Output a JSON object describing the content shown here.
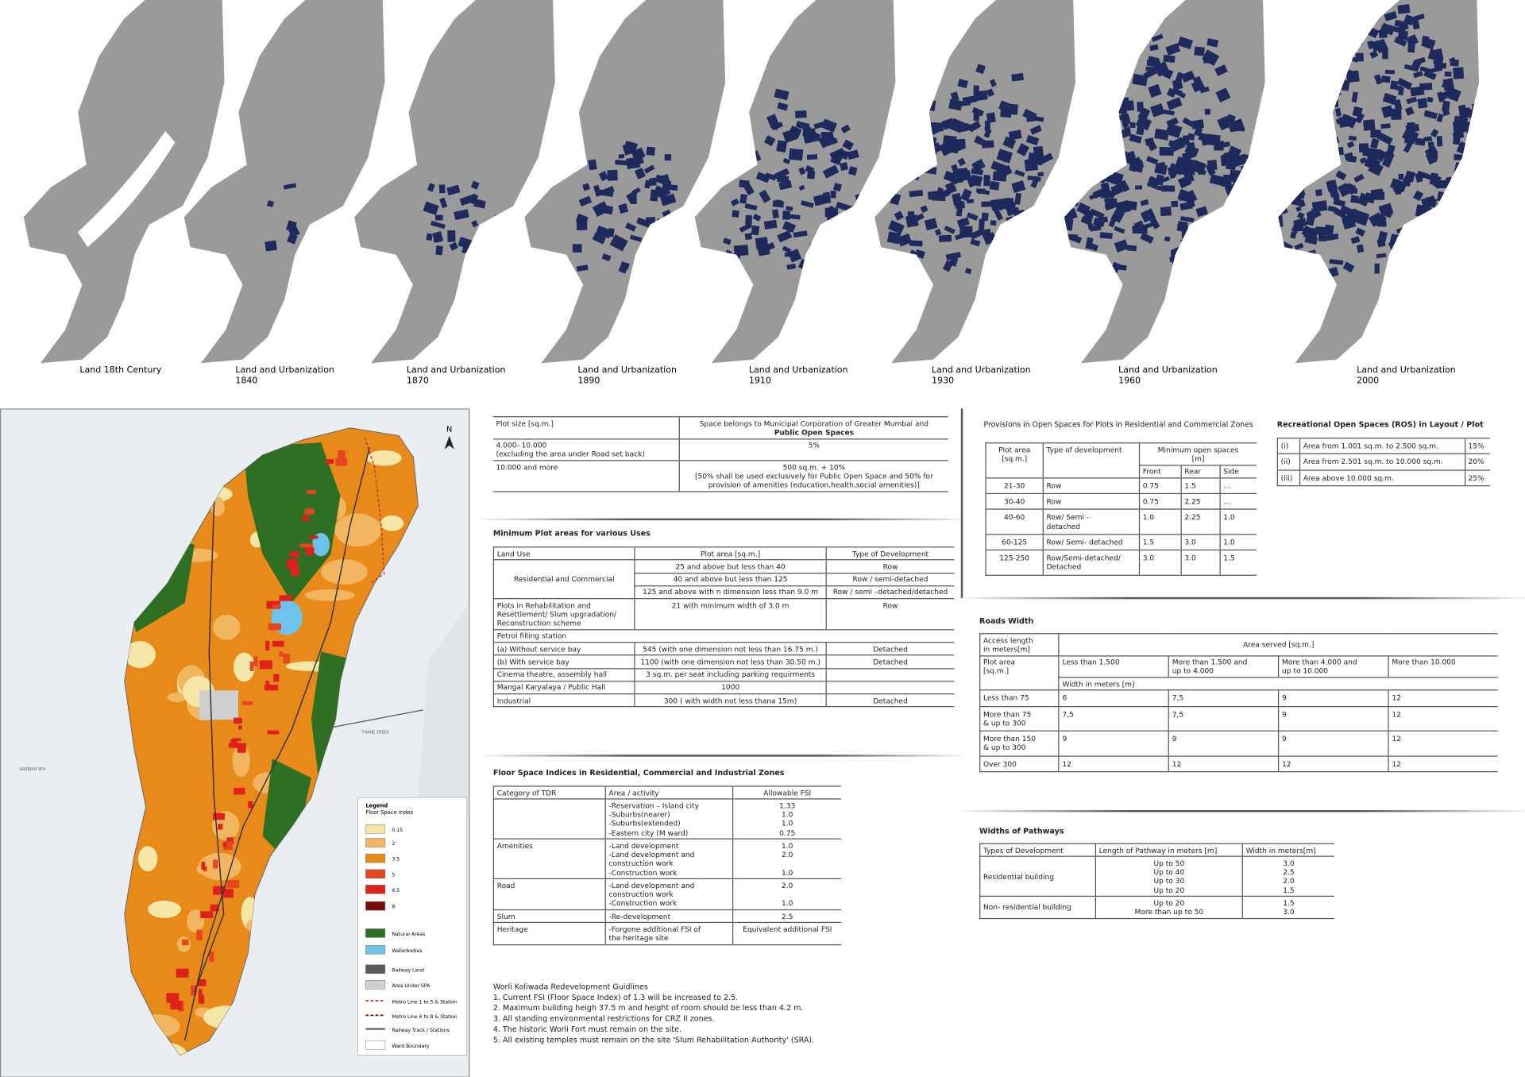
{
  "timeline": {
    "maps": [
      {
        "label": "Land 18th Century"
      },
      {
        "label": "Land and Urbanization",
        "year": "1840"
      },
      {
        "label": "Land and Urbanization",
        "year": "1870"
      },
      {
        "label": "Land and Urbanization",
        "year": "1890"
      },
      {
        "label": "Land and Urbanization",
        "year": "1910"
      },
      {
        "label": "Land and Urbanization",
        "year": "1930"
      },
      {
        "label": "Land and Urbanization",
        "year": "1960"
      },
      {
        "label": "Land and Urbanization",
        "year": "2000"
      }
    ]
  },
  "zoning_map": {
    "north": "N",
    "sea": "ARABIAN SEA",
    "creek": "THANE CREEK",
    "legend": {
      "title": "Legend",
      "subtitle": "Floor Space Index",
      "items": [
        {
          "label": "0.15",
          "color": "#f6e7a9"
        },
        {
          "label": "2",
          "color": "#f2b560"
        },
        {
          "label": "3.5",
          "color": "#e88a1a"
        },
        {
          "label": "5",
          "color": "#e5451f"
        },
        {
          "label": "6.5",
          "color": "#e0201b"
        },
        {
          "label": "8",
          "color": "#7a0a0a"
        },
        {
          "label": "Natural Areas",
          "color": "#2e6f23"
        },
        {
          "label": "Waterbodies",
          "color": "#6ec3ec"
        },
        {
          "label": "Railway Land",
          "color": "#5a5a5a"
        },
        {
          "label": "Area Under SPA",
          "color": "#cfcfcf"
        },
        {
          "label": "Metro Line 1 to 5 & Station",
          "color": "#c0392b"
        },
        {
          "label": "Metro Line 6 to 8 & Station",
          "color": "#8b0000"
        },
        {
          "label": "Railway Track / Stations",
          "color": "#333333"
        },
        {
          "label": "Ward Boundary",
          "color": "#ffffff"
        }
      ]
    }
  },
  "plot_size_table": {
    "header": {
      "plot": "Plot size [sq.m.]",
      "space": "Space belongs to Municipal Corporation of Greater Mumbai and",
      "space_bold": "Public Open Spaces"
    },
    "rows": [
      [
        "4.000- 10.000\n(excluding the area under Road set back)",
        "5%"
      ],
      [
        "10.000 and more",
        "500 sq.m. + 10%\n[50% shall be used exclusively for Public Open Space and 50% for provision of amenities (education,health,social amenities)]"
      ]
    ]
  },
  "minimum_plot_areas": {
    "title": "Minimum Plot areas for various Uses",
    "header": [
      "Land Use",
      "Plot area [sq.m.]",
      "Type of Development"
    ],
    "rows": [
      {
        "use": "Residential and Commercial",
        "items": [
          [
            "25 and above but less than 40",
            "Row"
          ],
          [
            "40 and above but less than 125",
            "Row / semi-detached"
          ],
          [
            "125 and above with n dimension less than 9.0 m",
            "Row / semi –detached/detached"
          ]
        ]
      },
      {
        "use": "Plots in Rehabilitation and Resettlement/ Slum upgradation/ Reconstruction scheme",
        "items": [
          [
            "21 with minimum width of 3.0 m",
            "Row"
          ]
        ]
      },
      {
        "use": "Petrol filling station",
        "items": []
      },
      {
        "use": "(a) Without service bay",
        "items": [
          [
            "545 (with one dimension not less than 16.75 m.)",
            "Detached"
          ]
        ]
      },
      {
        "use": "(b) With service bay",
        "items": [
          [
            "1100 (with one dimension not less than 30.50 m.)",
            "Detached"
          ]
        ]
      },
      {
        "use": "Cinema theatre, assembly hall",
        "items": [
          [
            "3 sq.m. per seat including parking requirments"
          ]
        ]
      },
      {
        "use": "Mangal Karyalaya / Public Hall",
        "items": [
          [
            "1000"
          ]
        ]
      },
      {
        "use": "Industrial",
        "items": [
          [
            "300 ( with width not less thana 15m)",
            "Detached"
          ]
        ]
      }
    ]
  },
  "floor_space_indices": {
    "title": "Floor Space Indices in Residential, Commercial and Industrial Zones",
    "header": [
      "Category of TDR",
      "Area / activity",
      "Allowable FSI"
    ],
    "rows": [
      {
        "activity": "-Reservation – Island city\n-Suburbs(nearer)\n-Suburbs(extended)\n-Eastern city (M ward)",
        "fsi": "1.33\n1.0\n1.0\n0.75"
      },
      {
        "category": "Amenities",
        "activity": "-Land development\n-Land development and\nconstruction work\n-Construction work",
        "fsi": "1.0\n2.0\n\n1.0"
      },
      {
        "category": "Road",
        "activity": "-Land development and\nconstruction work\n-Construction work",
        "fsi": "2.0\n\n1.0"
      },
      {
        "category": "Slum",
        "activity": "-Re-development",
        "fsi": "2.5"
      },
      {
        "category": "Heritage",
        "activity": "-Forgone additional FSI of\nthe heritage site",
        "fsi": "Equivalent additional FSI"
      }
    ]
  },
  "worli_guidelines": {
    "title": "Worli Koliwada Redevelopment Guidlines",
    "items": [
      "1. Current FSI (Floor Space Index) of 1.3 will be increased to 2.5.",
      "2. Maximum building heigh 37.5 m and height of room should be less than 4.2 m.",
      "3. All standing environmental restrictions for CRZ II zones.",
      "4. The historic Worli Fort must remain on the site.",
      "5. All existing temples must remain on the site 'Slum Rehabilitation Authority' (SRA)."
    ]
  },
  "open_spaces": {
    "title": "Provisions in Open Spaces for Plots in Residential and Commercial Zones",
    "header": {
      "plot_area": "Plot area\n[sq.m.]",
      "type": "Type of development",
      "minimum": "Minimum open spaces\n[m]",
      "sub": [
        "Front",
        "Rear",
        "Side"
      ]
    },
    "rows": [
      [
        "21-30",
        "Row",
        "0.75",
        "1.5",
        "..."
      ],
      [
        "30-40",
        "Row",
        "0.75",
        "2.25",
        "..."
      ],
      [
        "40-60",
        "Row/ Semi -\ndetached",
        "1.0",
        "2.25",
        "1.0"
      ],
      [
        "60-125",
        "Row/ Semi- detached",
        "1.5",
        "3.0",
        "1.0"
      ],
      [
        "125-250",
        "Row/Semi-detached/\nDetached",
        "3.0",
        "3.0",
        "1.5"
      ]
    ]
  },
  "ros": {
    "title": "Recreational Open Spaces (ROS) in Layout / Plot",
    "rows": [
      [
        "(i)",
        "Area from 1.001 sq.m. to 2.500 sq.m.",
        "15%"
      ],
      [
        "(ii)",
        "Area from 2.501 sq.m. to 10.000 sq.m.",
        "20%"
      ],
      [
        "(iii)",
        "Area above 10.000 sq.m.",
        "25%"
      ]
    ]
  },
  "roads_width": {
    "title": "Roads Width",
    "access_length": "Access length\nin meters[m]",
    "area_served": "Area served [sq.m.]",
    "plot_area": "Plot area\n[sq.m.]",
    "width": "Width in meters [m]",
    "columns": [
      "Less than 1.500",
      "More than 1.500 and\nup to 4.000",
      "More than 4.000 and\nup to 10.000",
      "More than 10.000"
    ],
    "rows": [
      [
        "Less than 75",
        "6",
        "7,5",
        "9",
        "12"
      ],
      [
        "More than 75\n& up to 300",
        "7,5",
        "7,5",
        "9",
        "12"
      ],
      [
        "More than 150\n& up to 300",
        "9",
        "9",
        "9",
        "12"
      ],
      [
        "Over 300",
        "12",
        "12",
        "12",
        "12"
      ]
    ]
  },
  "pathways": {
    "title": "Widths of Pathways",
    "header": [
      "Types of Development",
      "Length of Pathway in meters [m]",
      "Width in meters[m]"
    ],
    "rows": [
      {
        "type": "Residential building",
        "lengths": "Up to 50\nUp to 40\nUp to 30\nUp to 20",
        "widths": "3.0\n2.5\n2.0\n1.5"
      },
      {
        "type": "Non- residential building",
        "lengths": "Up to 20\nMore than up to 50",
        "widths": "1.5\n3.0"
      }
    ]
  }
}
